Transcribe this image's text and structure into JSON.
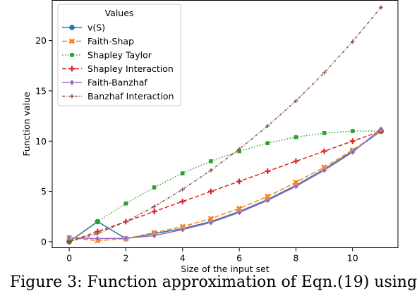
{
  "caption": "Figure 3: Function approximation of Eqn.(19) using",
  "chart_data": {
    "type": "line",
    "xlabel": "Size of the input set",
    "ylabel": "Function value",
    "xlim": [
      -0.6,
      11.6
    ],
    "ylim": [
      -0.6,
      24.0
    ],
    "xticks": [
      0,
      2,
      4,
      6,
      8,
      10
    ],
    "yticks": [
      0,
      5,
      10,
      15,
      20
    ],
    "grid": false,
    "legend": {
      "title": "Values",
      "position": "top-left"
    },
    "x": [
      0,
      1,
      2,
      3,
      4,
      5,
      6,
      7,
      8,
      9,
      10,
      11
    ],
    "series": [
      {
        "name": "v(S)",
        "color": "#1f77b4",
        "dash": "",
        "marker": "circle",
        "values": [
          0.0,
          2.0,
          0.3,
          0.8,
          1.3,
          2.0,
          3.0,
          4.2,
          5.6,
          7.2,
          9.0,
          11.0
        ]
      },
      {
        "name": "Faith-Shap",
        "color": "#ff7f0e",
        "dash": "7,3",
        "marker": "x",
        "values": [
          0.4,
          0.1,
          0.3,
          0.9,
          1.5,
          2.3,
          3.3,
          4.5,
          5.9,
          7.4,
          9.1,
          11.0
        ]
      },
      {
        "name": "Shapley Taylor",
        "color": "#2ca02c",
        "dash": "1.5,2.5",
        "marker": "square",
        "values": [
          0.0,
          2.0,
          3.8,
          5.4,
          6.8,
          8.0,
          9.0,
          9.8,
          10.4,
          10.8,
          11.0,
          11.0
        ]
      },
      {
        "name": "Shapley Interaction",
        "color": "#d62728",
        "dash": "6,3",
        "marker": "plus",
        "values": [
          0.0,
          1.0,
          2.0,
          3.0,
          4.0,
          5.0,
          6.0,
          7.0,
          8.0,
          9.0,
          10.0,
          11.0
        ]
      },
      {
        "name": "Faith-Banzhaf",
        "color": "#9467bd",
        "dash": "",
        "marker": "diamond",
        "values": [
          0.4,
          0.3,
          0.35,
          0.6,
          1.2,
          1.9,
          2.9,
          4.1,
          5.5,
          7.1,
          8.9,
          11.2
        ]
      },
      {
        "name": "Banzhaf Interaction",
        "color": "#8c564b",
        "dash": "4,2,1,2",
        "marker": "plus-small",
        "values": [
          0.0,
          0.8,
          2.0,
          3.5,
          5.2,
          7.1,
          9.2,
          11.5,
          14.0,
          16.8,
          19.9,
          23.3
        ]
      }
    ]
  }
}
